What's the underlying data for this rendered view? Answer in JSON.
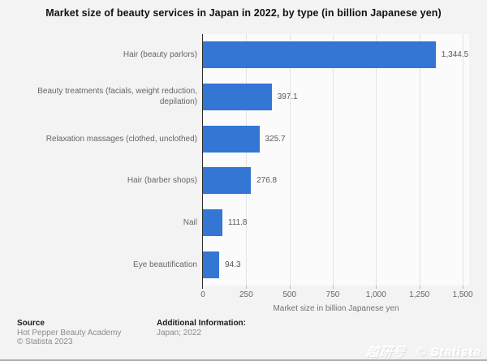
{
  "title": "Market size of beauty services in Japan in 2022, by type (in billion Japanese yen)",
  "chart_data": {
    "type": "bar",
    "orientation": "horizontal",
    "categories": [
      "Hair (beauty parlors)",
      "Beauty treatments (facials, weight reduction, depilation)",
      "Relaxation massages (clothed, unclothed)",
      "Hair (barber shops)",
      "Nail",
      "Eye beautification"
    ],
    "values": [
      1344.5,
      397.1,
      325.7,
      276.8,
      111.8,
      94.3
    ],
    "value_labels": [
      "1,344.5",
      "397.1",
      "325.7",
      "276.8",
      "111.8",
      "94.3"
    ],
    "xlabel": "Market size in billion Japanese yen",
    "ylabel": "",
    "xlim": [
      0,
      1500
    ],
    "x_ticks": [
      0,
      250,
      500,
      750,
      1000,
      1250,
      1500
    ],
    "x_tick_labels": [
      "0",
      "250",
      "500",
      "750",
      "1,000",
      "1,250",
      "1,500"
    ],
    "grid": "vertical",
    "legend": "none",
    "bar_color": "#3376d3"
  },
  "footer": {
    "source_heading": "Source",
    "source_line1": "Hot Pepper Beauty Academy",
    "source_line2": "© Statista 2023",
    "additional_heading": "Additional Information:",
    "additional_line1": "Japan; 2022"
  },
  "watermark": {
    "logo_text": "越研号",
    "statista_text": "© Statista"
  }
}
